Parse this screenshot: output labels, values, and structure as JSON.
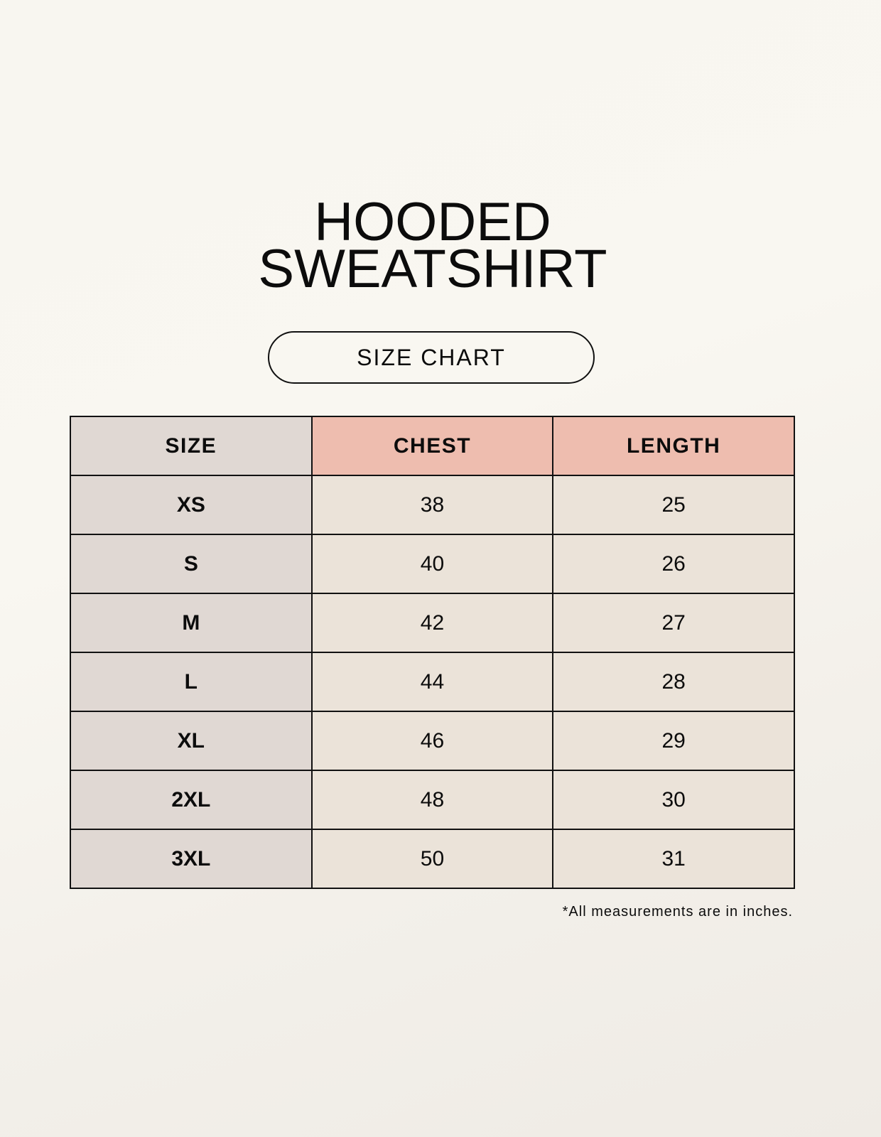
{
  "title_line1": "HOODED",
  "title_line2": "SWEATSHIRT",
  "subtitle": "SIZE CHART",
  "table": {
    "headers": [
      "SIZE",
      "CHEST",
      "LENGTH"
    ],
    "rows": [
      [
        "XS",
        "38",
        "25"
      ],
      [
        "S",
        "40",
        "26"
      ],
      [
        "M",
        "42",
        "27"
      ],
      [
        "L",
        "44",
        "28"
      ],
      [
        "XL",
        "46",
        "29"
      ],
      [
        "2XL",
        "48",
        "30"
      ],
      [
        "3XL",
        "50",
        "31"
      ]
    ]
  },
  "note": "*All measurements are in inches.",
  "colors": {
    "size_column": "#e0d8d3",
    "header_accent": "#eebdaf",
    "cell": "#ebe3d9"
  }
}
